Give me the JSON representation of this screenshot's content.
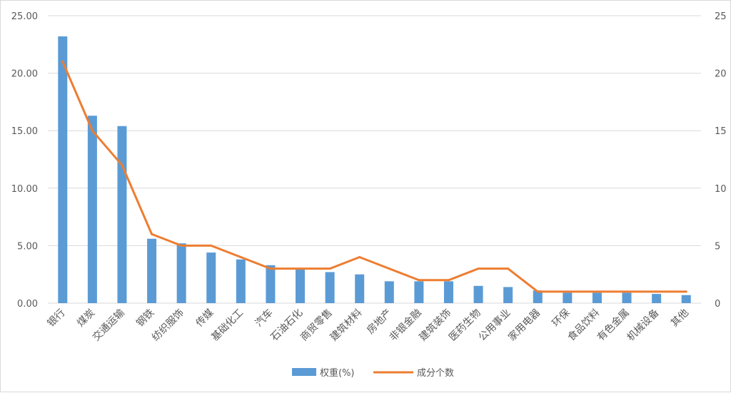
{
  "chart_data": {
    "type": "bar",
    "categories": [
      "银行",
      "煤炭",
      "交通运输",
      "钢铁",
      "纺织服饰",
      "传媒",
      "基础化工",
      "汽车",
      "石油石化",
      "商贸零售",
      "建筑材料",
      "房地产",
      "非银金融",
      "建筑装饰",
      "医药生物",
      "公用事业",
      "家用电器",
      "环保",
      "食品饮料",
      "有色金属",
      "机械设备",
      "其他"
    ],
    "series": [
      {
        "name": "权重(%)",
        "type": "bar",
        "axis": "left",
        "color": "#5b9bd5",
        "values": [
          23.2,
          16.3,
          15.4,
          5.6,
          5.2,
          4.4,
          3.8,
          3.3,
          3.0,
          2.7,
          2.5,
          1.9,
          1.9,
          1.9,
          1.5,
          1.4,
          1.1,
          0.9,
          0.9,
          0.9,
          0.8,
          0.7
        ]
      },
      {
        "name": "成分个数",
        "type": "line",
        "axis": "right",
        "color": "#ed7d31",
        "values": [
          21,
          15,
          12,
          6,
          5,
          5,
          4,
          3,
          3,
          3,
          4,
          3,
          2,
          2,
          3,
          3,
          1,
          1,
          1,
          1,
          1,
          1
        ]
      }
    ],
    "left_axis": {
      "min": 0,
      "max": 25,
      "step": 5,
      "tick_labels": [
        "0.00",
        "5.00",
        "10.00",
        "15.00",
        "20.00",
        "25.00"
      ]
    },
    "right_axis": {
      "min": 0,
      "max": 25,
      "step": 5,
      "tick_labels": [
        "0",
        "5",
        "10",
        "15",
        "20",
        "25"
      ]
    },
    "grid": true,
    "legend_position": "bottom-center"
  }
}
